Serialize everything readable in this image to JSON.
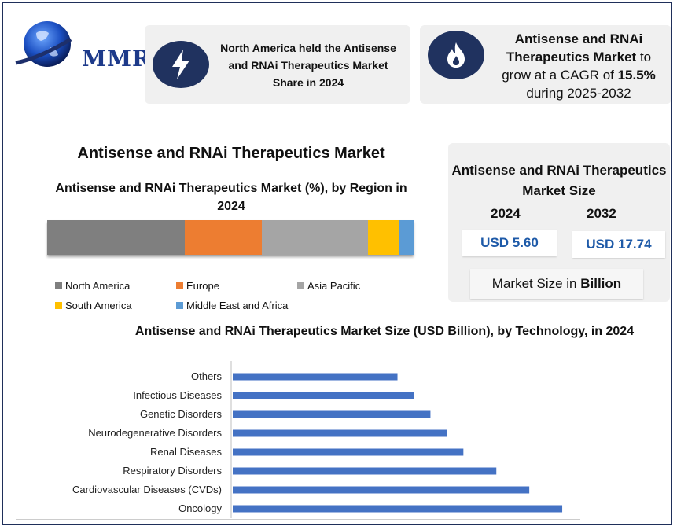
{
  "brand": {
    "logo_text": "MMR",
    "logo_icon": "globe-icon"
  },
  "header": {
    "card1": {
      "icon": "lightning-icon",
      "text": "North America held the Antisense and RNAi Therapeutics Market Share in 2024"
    },
    "card2": {
      "icon": "flame-icon",
      "line1_bold": "Antisense and RNAi Therapeutics Market",
      "line1_rest": " to grow at a CAGR of ",
      "cagr": "15.5%",
      "line2": "during 2025-2032"
    }
  },
  "region_chart": {
    "main_title": "Antisense and RNAi Therapeutics Market",
    "title": "Antisense and RNAi Therapeutics Market  (%), by Region in 2024",
    "colors": [
      "#7f7f7f",
      "#ed7d31",
      "#a5a5a5",
      "#ffc000",
      "#5b9bd5"
    ]
  },
  "size_panel": {
    "title": "Antisense and RNAi Therapeutics Market Size",
    "year1": "2024",
    "year2": "2032",
    "value1": "USD 5.60",
    "value2": "USD 17.74",
    "unit_prefix": "Market Size in ",
    "unit_bold": "Billion"
  },
  "chart_data": [
    {
      "type": "bar",
      "orientation": "horizontal-stacked",
      "title": "Antisense and RNAi Therapeutics Market  (%), by Region in 2024",
      "series": [
        {
          "name": "North America",
          "values": [
            37.5
          ]
        },
        {
          "name": "Europe",
          "values": [
            21
          ]
        },
        {
          "name": "Asia Pacific",
          "values": [
            29
          ]
        },
        {
          "name": "South America",
          "values": [
            8.5
          ]
        },
        {
          "name": "Middle East and Africa",
          "values": [
            4
          ]
        }
      ],
      "legend": "bottom"
    },
    {
      "type": "bar",
      "orientation": "horizontal",
      "title": "Antisense and RNAi Therapeutics Market Size (USD Billion), by Technology, in 2024",
      "categories": [
        "Others",
        "Infectious Diseases",
        "Genetic Disorders",
        "Neurodegenerative Disorders",
        "Renal Diseases",
        "Respiratory Disorders",
        "Cardiovascular Diseases (CVDs)",
        "Oncology"
      ],
      "values": [
        0.5,
        0.55,
        0.6,
        0.65,
        0.7,
        0.8,
        0.9,
        1.0
      ],
      "color": "#4472c4",
      "xlim": [
        0,
        1.05
      ],
      "grid": false
    }
  ]
}
